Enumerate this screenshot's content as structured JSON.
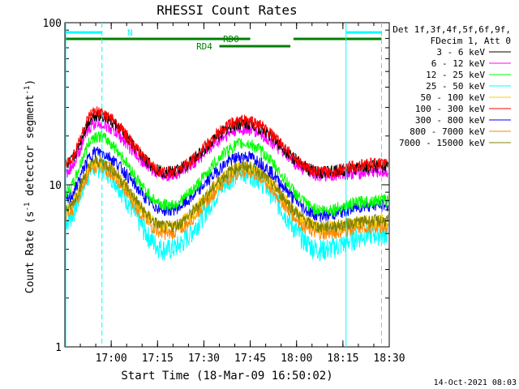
{
  "chart_data": {
    "type": "line",
    "title": "RHESSI Count Rates",
    "xlabel": "Start Time (18-Mar-09 16:50:02)",
    "ylabel_main": "Count Rate (s",
    "ylabel_sup1": "-1",
    "ylabel_mid": " detector segment",
    "ylabel_sup2": "-1",
    "ylabel_end": ")",
    "ylog": true,
    "ylim": [
      1,
      100
    ],
    "xlim_minutes": [
      -5,
      100
    ],
    "x_ticks": [
      {
        "label": "17:00",
        "minutes": 10
      },
      {
        "label": "17:15",
        "minutes": 25
      },
      {
        "label": "17:30",
        "minutes": 40
      },
      {
        "label": "17:45",
        "minutes": 55
      },
      {
        "label": "18:00",
        "minutes": 70
      },
      {
        "label": "18:15",
        "minutes": 85
      },
      {
        "label": "18:30",
        "minutes": 100
      }
    ],
    "y_ticks": [
      {
        "label": "1",
        "value": 1
      },
      {
        "label": "10",
        "value": 10
      },
      {
        "label": "100",
        "value": 100
      }
    ],
    "legend_header": [
      "Det 1f,3f,4f,5f,6f,9f,",
      "FDecim 1, Att 0"
    ],
    "series": [
      {
        "name": "3 - 6 keV",
        "color": "#000000",
        "values": [
          13,
          27,
          12,
          24,
          12,
          13
        ]
      },
      {
        "name": "6 - 12 keV",
        "color": "#ff00ff",
        "values": [
          12,
          24,
          11.5,
          22,
          11.5,
          12
        ]
      },
      {
        "name": "12 - 25 keV",
        "color": "#00ff00",
        "values": [
          9,
          20,
          7.5,
          18,
          7,
          8
        ]
      },
      {
        "name": "25 - 50 keV",
        "color": "#00ffff",
        "values": [
          6,
          13,
          4,
          12,
          4,
          5
        ]
      },
      {
        "name": "50 - 100 keV",
        "color": "#ffcc00",
        "values": [
          7,
          14,
          5.5,
          13,
          5.5,
          6
        ]
      },
      {
        "name": "100 - 300 keV",
        "color": "#ff0000",
        "values": [
          13.5,
          28,
          12,
          25,
          12,
          13.5
        ]
      },
      {
        "name": "300 - 800 keV",
        "color": "#0000ff",
        "values": [
          8,
          16,
          7,
          15,
          6.5,
          7.5
        ]
      },
      {
        "name": "800 - 7000 keV",
        "color": "#ff8800",
        "values": [
          6.5,
          13,
          5,
          12,
          5,
          5.5
        ]
      },
      {
        "name": "7000 - 15000 keV",
        "color": "#808000",
        "values": [
          7,
          14,
          5.5,
          13,
          5.5,
          6
        ]
      }
    ],
    "series_x_minutes": [
      -5,
      5,
      28,
      53,
      78,
      95
    ],
    "annotations": {
      "attenuator_label": "N",
      "rd0_label": "RD0",
      "rd4_label": "RD4"
    },
    "footer_date": "14-Oct-2021 08:03"
  }
}
